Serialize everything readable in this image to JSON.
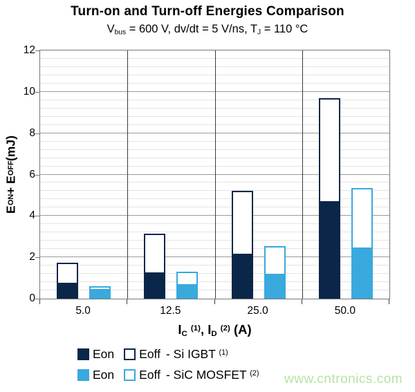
{
  "title": "Turn-on and Turn-off Energies Comparison",
  "subtitle_text": "Vbus = 600 V, dv/dt = 5 V/ns, TJ = 110 °C",
  "subtitle_parts": [
    {
      "t": "V"
    },
    {
      "t": "bus",
      "style": "sub"
    },
    {
      "t": " = 600 V, dv/dt = 5 V/ns, T"
    },
    {
      "t": "J",
      "style": "sub"
    },
    {
      "t": " = 110 °C"
    }
  ],
  "watermark": "www.cntronics.com",
  "colors": {
    "si_navy": "#0a2648",
    "sic_blue": "#39a9de",
    "major_grid": "#9b9b9b",
    "minor_grid": "#e4e4e4",
    "plot_border": "#767676",
    "separator": "#3c3c3c",
    "watermark_green": "#b5e3a6"
  },
  "chart_data": {
    "type": "bar",
    "stacked": true,
    "title": "Turn-on and Turn-off Energies Comparison",
    "subtitle": "Vbus = 600 V, dv/dt = 5 V/ns, TJ = 110 °C",
    "categories": [
      "5.0",
      "12.5",
      "25.0",
      "50.0"
    ],
    "series": [
      {
        "name": "Eon - Si IGBT",
        "stack": "si",
        "style": "filled",
        "color": "#0a2648",
        "values": [
          0.7,
          1.2,
          2.1,
          4.65
        ]
      },
      {
        "name": "Eoff - Si IGBT",
        "stack": "si",
        "style": "outline",
        "color": "#0a2648",
        "values": [
          1.05,
          1.95,
          3.1,
          5.05
        ]
      },
      {
        "name": "Eon - SiC MOSFET",
        "stack": "sic",
        "style": "filled",
        "color": "#39a9de",
        "values": [
          0.4,
          0.65,
          1.15,
          2.4
        ]
      },
      {
        "name": "Eoff - SiC MOSFET",
        "stack": "sic",
        "style": "outline",
        "color": "#39a9de",
        "values": [
          0.2,
          0.65,
          1.4,
          2.95
        ]
      }
    ],
    "stack_totals": {
      "si": [
        1.75,
        3.15,
        5.2,
        9.7
      ],
      "sic": [
        0.6,
        1.3,
        2.55,
        5.35
      ]
    },
    "xlabel": "IC (1), ID (2) (A)",
    "ylabel": "EON + EOFF (mJ)",
    "xlabel_parts": [
      {
        "t": "I"
      },
      {
        "t": "C",
        "style": "sub"
      },
      {
        "t": " "
      },
      {
        "t": "(1)",
        "style": "sup"
      },
      {
        "t": ", I"
      },
      {
        "t": "D",
        "style": "sub"
      },
      {
        "t": " "
      },
      {
        "t": "(2)",
        "style": "sup"
      },
      {
        "t": " (A)"
      }
    ],
    "ylabel_parts": [
      {
        "t": "E"
      },
      {
        "t": "ON",
        "style": "sub"
      },
      {
        "t": " + E"
      },
      {
        "t": "OFF",
        "style": "sub"
      },
      {
        "t": " (mJ)"
      }
    ],
    "ylim": [
      0,
      12
    ],
    "y_major_unit": 2,
    "y_minor_unit": 0.4,
    "y_ticks": [
      "0",
      "2",
      "4",
      "6",
      "8",
      "10",
      "12"
    ],
    "grid": "major and minor horizontal, vertical category separators",
    "legend_position": "bottom"
  },
  "legend": {
    "rows": [
      {
        "eon": "Eon",
        "eoff": "Eoff",
        "device": "- Si IGBT ",
        "note": "(1)",
        "stack": "si"
      },
      {
        "eon": "Eon",
        "eoff": "Eoff",
        "device": "- SiC MOSFET ",
        "note": "(2)",
        "stack": "sic"
      }
    ]
  }
}
